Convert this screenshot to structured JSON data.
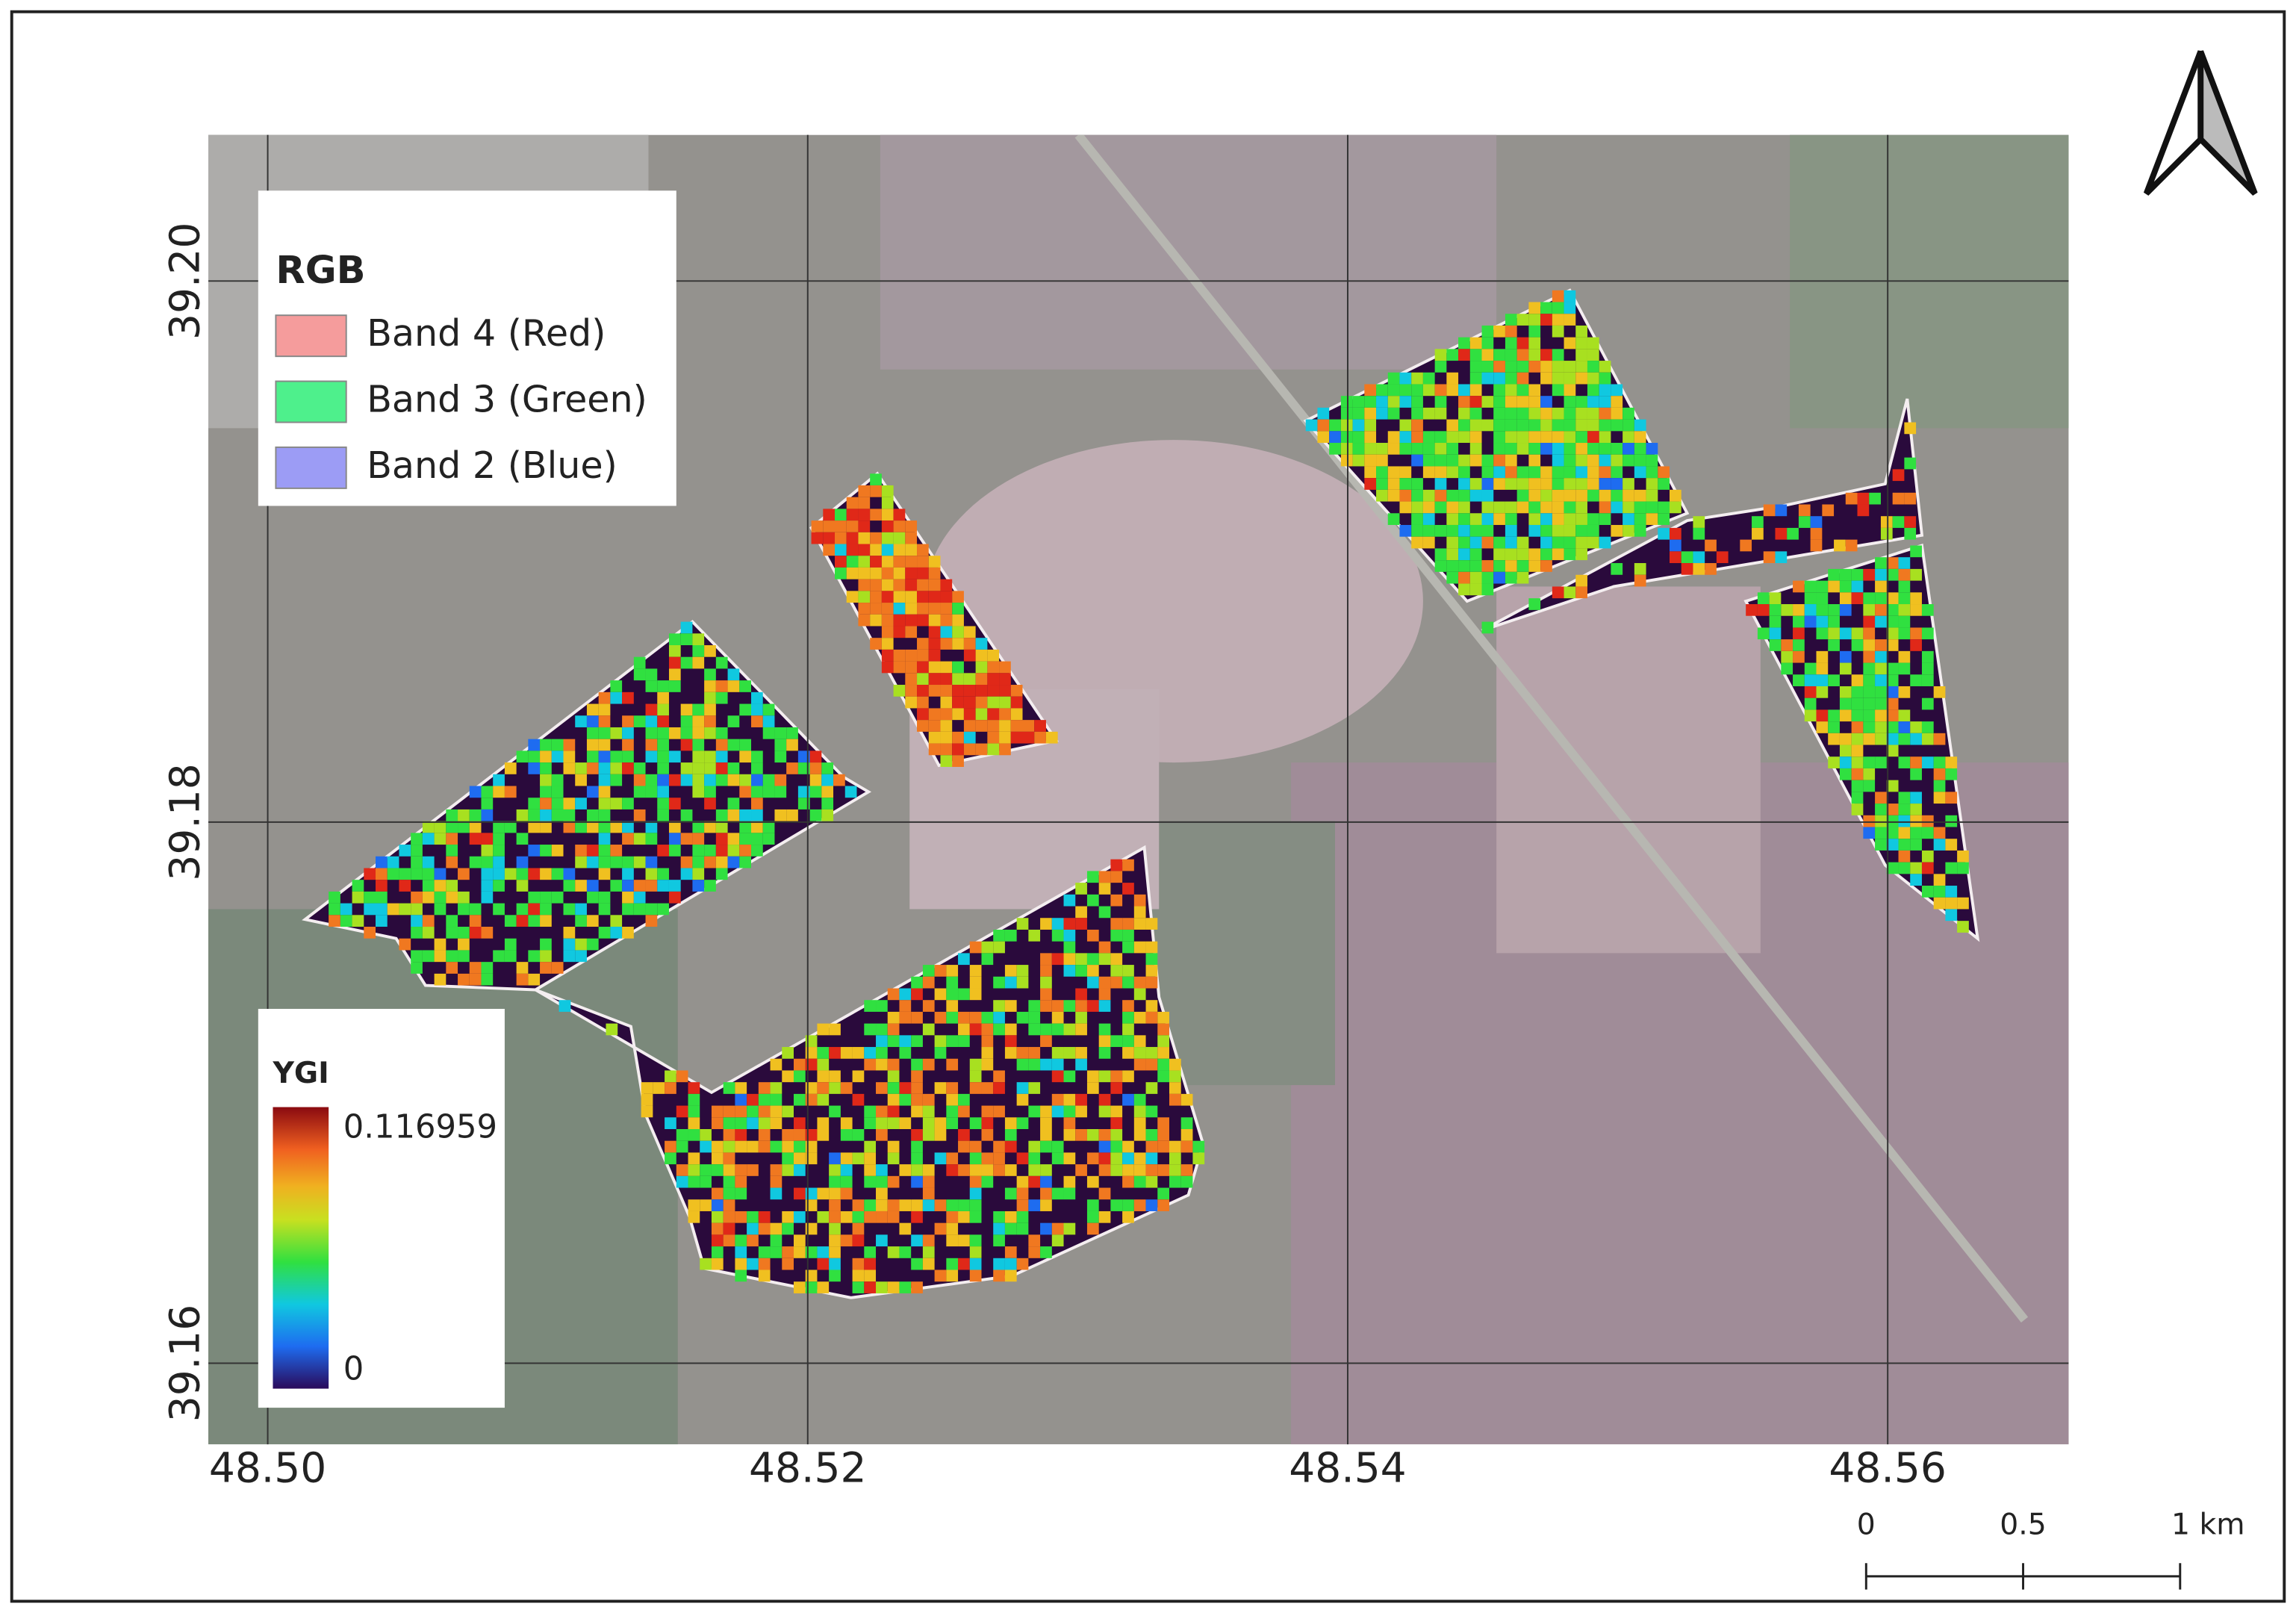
{
  "map": {
    "xlim": [
      48.4978,
      48.5667
    ],
    "ylim": [
      39.157,
      39.2054
    ],
    "xticks": [
      {
        "value": 48.5,
        "label": "48.50"
      },
      {
        "value": 48.52,
        "label": "48.52"
      },
      {
        "value": 48.54,
        "label": "48.54"
      },
      {
        "value": 48.56,
        "label": "48.56"
      }
    ],
    "yticks": [
      {
        "value": 39.2,
        "label": "39.20"
      },
      {
        "value": 39.18,
        "label": "39.18"
      },
      {
        "value": 39.16,
        "label": "39.16"
      }
    ]
  },
  "legend": {
    "title": "RGB",
    "items": [
      "Band 4 (Red)",
      "Band 3 (Green)",
      "Band 2 (Blue)"
    ],
    "colors": [
      "#f59c9c",
      "#4ef08c",
      "#9c9cf5"
    ]
  },
  "colorbar": {
    "title": "YGI",
    "max": 0.116959,
    "min": 0
  },
  "scale_bar": {
    "ticks": [
      0,
      0.5,
      {
        "value": 1,
        "label": "1 km"
      }
    ]
  }
}
